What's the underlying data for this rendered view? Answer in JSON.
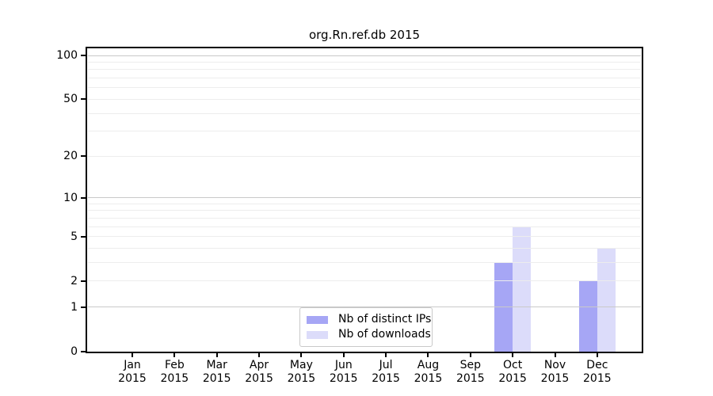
{
  "chart_data": {
    "type": "bar",
    "title": "org.Rn.ref.db 2015",
    "categories": [
      "Jan 2015",
      "Feb 2015",
      "Mar 2015",
      "Apr 2015",
      "May 2015",
      "Jun 2015",
      "Jul 2015",
      "Aug 2015",
      "Sep 2015",
      "Oct 2015",
      "Nov 2015",
      "Dec 2015"
    ],
    "series": [
      {
        "name": "Nb of distinct IPs",
        "color": "#a6a6f5",
        "values": [
          0,
          0,
          0,
          0,
          0,
          0,
          0,
          0,
          0,
          3,
          0,
          2
        ]
      },
      {
        "name": "Nb of downloads",
        "color": "#dcdcfa",
        "values": [
          0,
          0,
          0,
          0,
          0,
          0,
          0,
          0,
          0,
          6,
          0,
          4
        ]
      }
    ],
    "xlabel": "",
    "ylabel": "",
    "yscale": "log1p",
    "ylim": [
      0,
      112
    ],
    "y_tick_labels": [
      100,
      50,
      20,
      10,
      5,
      2,
      1,
      0
    ],
    "y_major_gridlines": [
      1,
      10,
      100
    ],
    "y_minor_gridlines": [
      2,
      3,
      4,
      5,
      6,
      7,
      8,
      9,
      20,
      30,
      40,
      50,
      60,
      70,
      80,
      90
    ],
    "grid": true,
    "legend_position": "lower center"
  },
  "colors": {
    "background": "#ffffff",
    "spine": "#000000",
    "major_grid": "#c9c9c9",
    "minor_grid": "#ededed",
    "legend_border": "#c9c9c9",
    "text": "#000000"
  }
}
